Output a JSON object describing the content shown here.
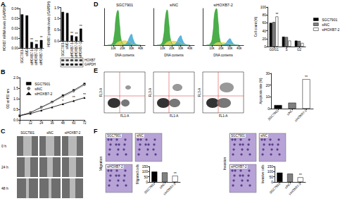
{
  "panel_labels": [
    "A",
    "B",
    "C",
    "D",
    "E",
    "F"
  ],
  "chart_data": [
    {
      "type": "bar",
      "ylabel": "HOXB7 mRNA levels (/GAPDH)",
      "categories": [
        "SGC7901",
        "siNC",
        "siHOXB7-1",
        "siHOXB7-2",
        "siHOXB7-3"
      ],
      "values": [
        0.034,
        0.033,
        0.006,
        0.004,
        0.008
      ],
      "color": "#000000",
      "ylim": [
        0,
        0.04
      ],
      "yticks": [
        {
          "value": 0,
          "label": "0.00"
        },
        {
          "value": 0.01,
          "label": "0.01"
        },
        {
          "value": 0.02,
          "label": "0.02"
        },
        {
          "value": 0.03,
          "label": "0.03"
        },
        {
          "value": 0.04,
          "label": "0.04"
        }
      ],
      "annotations": [
        {
          "category": "siHOXB7-1",
          "text": "**"
        },
        {
          "category": "siHOXB7-2",
          "text": "**"
        },
        {
          "category": "siHOXB7-3",
          "text": "**"
        }
      ]
    },
    {
      "type": "bar",
      "ylabel": "HOXB7 protein levels (/GAPDH)",
      "categories": [
        "SGC7901",
        "siNC",
        "siHOXB7-1",
        "siHOXB7-2",
        "siHOXB7-3"
      ],
      "values": [
        1.3,
        1.25,
        0.25,
        0.2,
        0.55
      ],
      "color": "#000000",
      "ylim": [
        0,
        1.5
      ],
      "yticks": [
        {
          "value": 0,
          "label": "0.0"
        },
        0.5,
        {
          "value": 1,
          "label": "1.0"
        },
        1.5
      ],
      "annotations": [
        {
          "category": "siHOXB7-1",
          "text": "**"
        },
        {
          "category": "siHOXB7-2",
          "text": "**"
        },
        {
          "category": "siHOXB7-3",
          "text": "**"
        }
      ]
    },
    {
      "type": "line",
      "ylabel": "OD at 450 nm",
      "x": [
        0,
        12,
        24,
        36,
        48,
        60,
        72
      ],
      "xlim": [
        0,
        72
      ],
      "xticks": [
        0,
        12,
        24,
        36,
        48,
        60,
        72
      ],
      "ylim": [
        0,
        2
      ],
      "yticks": [
        {
          "value": 0,
          "label": "0.0"
        },
        0.5,
        {
          "value": 1,
          "label": "1.0"
        },
        1.5,
        {
          "value": 2,
          "label": "2.0"
        }
      ],
      "legend": "upper left",
      "series": [
        {
          "name": "SGC7901",
          "color": "#000000",
          "marker": "square",
          "values": [
            0.2,
            0.35,
            0.6,
            0.85,
            1.15,
            1.4,
            1.7
          ]
        },
        {
          "name": "siNC",
          "color": "#7f7f7f",
          "marker": "circle",
          "values": [
            0.2,
            0.34,
            0.58,
            0.83,
            1.1,
            1.35,
            1.65
          ]
        },
        {
          "name": "siHOXB7-2",
          "color": "#000000",
          "marker": "triangle",
          "values": [
            0.2,
            0.3,
            0.45,
            0.6,
            0.75,
            0.9,
            1.05
          ]
        }
      ],
      "annotations": [
        {
          "series": "siHOXB7-2",
          "x": 48,
          "text": "*"
        },
        {
          "series": "siHOXB7-2",
          "x": 60,
          "text": "**"
        },
        {
          "series": "siHOXB7-2",
          "x": 72,
          "text": "**"
        }
      ]
    },
    {
      "type": "area",
      "title": "SGC7901",
      "xlabel": "DNA contents",
      "x": [
        4000,
        8000,
        11000,
        13000,
        15000,
        17000,
        19000,
        22000,
        25000,
        28000,
        30000,
        32000,
        35000,
        40000
      ],
      "xlim": [
        0,
        45000
      ],
      "xticks": [
        {
          "value": 10000,
          "label": "10k"
        },
        {
          "value": 20000,
          "label": "20k"
        },
        {
          "value": 30000,
          "label": "30k"
        },
        {
          "value": 40000,
          "label": "40k"
        }
      ],
      "ylim": [
        0,
        100
      ],
      "tick_labels": "x",
      "series": [
        {
          "color": "#2ca02c",
          "values": [
            0,
            2,
            25,
            75,
            95,
            55,
            12,
            1,
            0,
            0,
            0,
            0,
            0,
            0
          ]
        },
        {
          "color": "#e8d44d",
          "values": [
            0,
            0,
            0,
            4,
            8,
            10,
            11,
            12,
            11,
            9,
            5,
            2,
            0,
            0
          ]
        },
        {
          "color": "#3fa7d6",
          "values": [
            0,
            0,
            0,
            0,
            0,
            0,
            0,
            1,
            6,
            22,
            30,
            16,
            3,
            0
          ]
        }
      ]
    },
    {
      "type": "area",
      "title": "siNC",
      "xlabel": "DNA contents",
      "x": [
        4000,
        8000,
        11000,
        13000,
        15000,
        17000,
        19000,
        22000,
        25000,
        28000,
        30000,
        32000,
        35000,
        40000
      ],
      "xlim": [
        0,
        45000
      ],
      "xticks": [
        {
          "value": 10000,
          "label": "10k"
        },
        {
          "value": 20000,
          "label": "20k"
        },
        {
          "value": 30000,
          "label": "30k"
        },
        {
          "value": 40000,
          "label": "40k"
        }
      ],
      "ylim": [
        0,
        100
      ],
      "tick_labels": "x",
      "series": [
        {
          "color": "#2ca02c",
          "values": [
            0,
            2,
            22,
            72,
            96,
            58,
            13,
            1,
            0,
            0,
            0,
            0,
            0,
            0
          ]
        },
        {
          "color": "#e8d44d",
          "values": [
            0,
            0,
            0,
            4,
            8,
            10,
            11,
            11,
            10,
            8,
            5,
            2,
            0,
            0
          ]
        },
        {
          "color": "#3fa7d6",
          "values": [
            0,
            0,
            0,
            0,
            0,
            0,
            0,
            1,
            6,
            20,
            26,
            14,
            3,
            0
          ]
        }
      ]
    },
    {
      "type": "area",
      "title": "siHOXB7-2",
      "xlabel": "DNA contents",
      "x": [
        4000,
        8000,
        11000,
        13000,
        15000,
        17000,
        19000,
        22000,
        25000,
        28000,
        30000,
        32000,
        35000,
        40000
      ],
      "xlim": [
        0,
        45000
      ],
      "xticks": [
        {
          "value": 10000,
          "label": "10k"
        },
        {
          "value": 20000,
          "label": "20k"
        },
        {
          "value": 30000,
          "label": "30k"
        },
        {
          "value": 40000,
          "label": "40k"
        }
      ],
      "ylim": [
        0,
        100
      ],
      "tick_labels": "x",
      "series": [
        {
          "color": "#2ca02c",
          "values": [
            0,
            3,
            30,
            85,
            100,
            62,
            14,
            1,
            0,
            0,
            0,
            0,
            0,
            0
          ]
        },
        {
          "color": "#e8d44d",
          "values": [
            0,
            0,
            0,
            3,
            6,
            7,
            7,
            7,
            6,
            5,
            3,
            1,
            0,
            0
          ]
        },
        {
          "color": "#3fa7d6",
          "values": [
            0,
            0,
            0,
            0,
            0,
            0,
            0,
            1,
            4,
            14,
            18,
            10,
            2,
            0
          ]
        }
      ]
    },
    {
      "type": "bar",
      "ylabel": "Cell count (%)",
      "categories": [
        "G0/G1",
        "S",
        "G2"
      ],
      "ylim": [
        0,
        100
      ],
      "yticks": [
        0,
        20,
        40,
        60,
        80,
        100
      ],
      "legend": "right",
      "series": [
        {
          "name": "SGC7901",
          "color": "#000000",
          "values": [
            60,
            25,
            15
          ]
        },
        {
          "name": "siNC",
          "color": "#808080",
          "values": [
            62,
            24,
            14
          ]
        },
        {
          "name": "siHOXB7-2",
          "color": "#ffffff",
          "values": [
            76,
            15,
            9
          ]
        }
      ],
      "annotations": [
        {
          "series": "siHOXB7-2",
          "category": "G0/G1",
          "text": "**"
        }
      ]
    },
    {
      "type": "bar",
      "ylabel": "Apoptosis rate (%)",
      "categories": [
        "SGC7901",
        "siNC",
        "siHOXB7-2"
      ],
      "values": [
        3,
        5,
        25
      ],
      "colors": [
        "#000000",
        "#808080",
        "#ffffff"
      ],
      "ylim": [
        0,
        30
      ],
      "yticks": [
        0,
        10,
        20,
        30
      ],
      "annotations": [
        {
          "category": "siHOXB7-2",
          "text": "**"
        }
      ]
    },
    {
      "type": "bar",
      "ylabel": "Migrated cells",
      "categories": [
        "SGC7901",
        "siNC",
        "siHOXB7-2"
      ],
      "values": [
        100,
        92,
        60
      ],
      "colors": [
        "#000000",
        "#808080",
        "#ffffff"
      ],
      "ylim": [
        0,
        150
      ],
      "yticks": [
        0,
        50,
        100,
        150
      ],
      "annotations": [
        {
          "category": "siHOXB7-2",
          "text": "**"
        }
      ]
    },
    {
      "type": "bar",
      "ylabel": "Invasive cells",
      "categories": [
        "SGC7901",
        "siNC",
        "siHOXB7-2"
      ],
      "values": [
        90,
        80,
        45
      ],
      "colors": [
        "#000000",
        "#808080",
        "#ffffff"
      ],
      "ylim": [
        0,
        150
      ],
      "yticks": [
        0,
        50,
        100,
        150
      ],
      "annotations": [
        {
          "category": "siHOXB7-2",
          "text": "**"
        }
      ]
    }
  ],
  "images": {
    "blot": {
      "rows": [
        "HOXB7",
        "GAPDH"
      ]
    },
    "wound_healing": {
      "columns": [
        "SGC7901",
        "siNC",
        "siHOXB7-2"
      ],
      "rows": [
        "0 h",
        "24 h",
        "48 h"
      ]
    },
    "flow_plots": {
      "x_label": "FL1-A",
      "y_label": "FL3-A"
    },
    "transwell": [
      {
        "title": "Migration",
        "panels": [
          "SGC7901",
          "siNC",
          "siHOXB7-2"
        ]
      },
      {
        "title": "Invasion",
        "panels": [
          "SGC7901",
          "siNC",
          "siHOXB7-2"
        ]
      }
    ]
  }
}
